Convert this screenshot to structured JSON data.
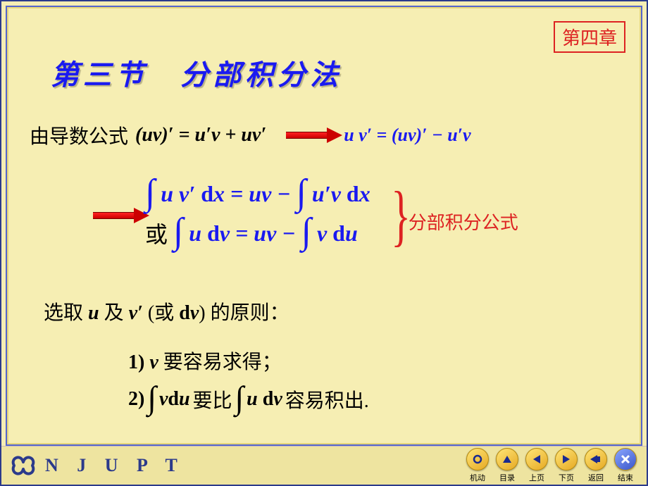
{
  "chapterBadge": "第四章",
  "title": "第三节　分部积分法",
  "intro_text": "由导数公式",
  "deriv_eq": "(uv)′ = u′v + uv′",
  "implied_eq": "u v′ = (uv)′ − u′v",
  "main_eq1_left": "u v′ dx",
  "main_eq1_mid": "= uv −",
  "main_eq1_right": "u′v dx",
  "or_label": "或",
  "main_eq2_left": "u dv",
  "main_eq2_mid": "= uv −",
  "main_eq2_right": "v du",
  "brace_caption": "分部积分公式",
  "select_line_pre": "选取 ",
  "select_u": "u",
  "select_and": " 及  ",
  "select_vprime": "v′ ",
  "select_or_dv": "(或 dv)",
  "select_line_post": "  的原则：",
  "rule1_pre": "1)  ",
  "rule1_v": "v",
  "rule1_post": " 要容易求得；",
  "rule2_pre": "2) ",
  "rule2_vdu": "v du",
  "rule2_mid": " 要比 ",
  "rule2_udv": "u dv",
  "rule2_post": "  容易积出.",
  "footer_njupt": "N J U P T",
  "nav": [
    {
      "label": "机动",
      "glyph_type": "circle",
      "close": false
    },
    {
      "label": "目录",
      "glyph_type": "up",
      "close": false
    },
    {
      "label": "上页",
      "glyph_type": "left",
      "close": false
    },
    {
      "label": "下页",
      "glyph_type": "right",
      "close": false
    },
    {
      "label": "返回",
      "glyph_type": "back",
      "close": false
    },
    {
      "label": "结束",
      "glyph_type": "x",
      "close": true
    }
  ],
  "colors": {
    "bg": "#f6eeb3",
    "blue_text": "#1a1af0",
    "red": "#d22",
    "border_blue": "#2b3a8b"
  }
}
